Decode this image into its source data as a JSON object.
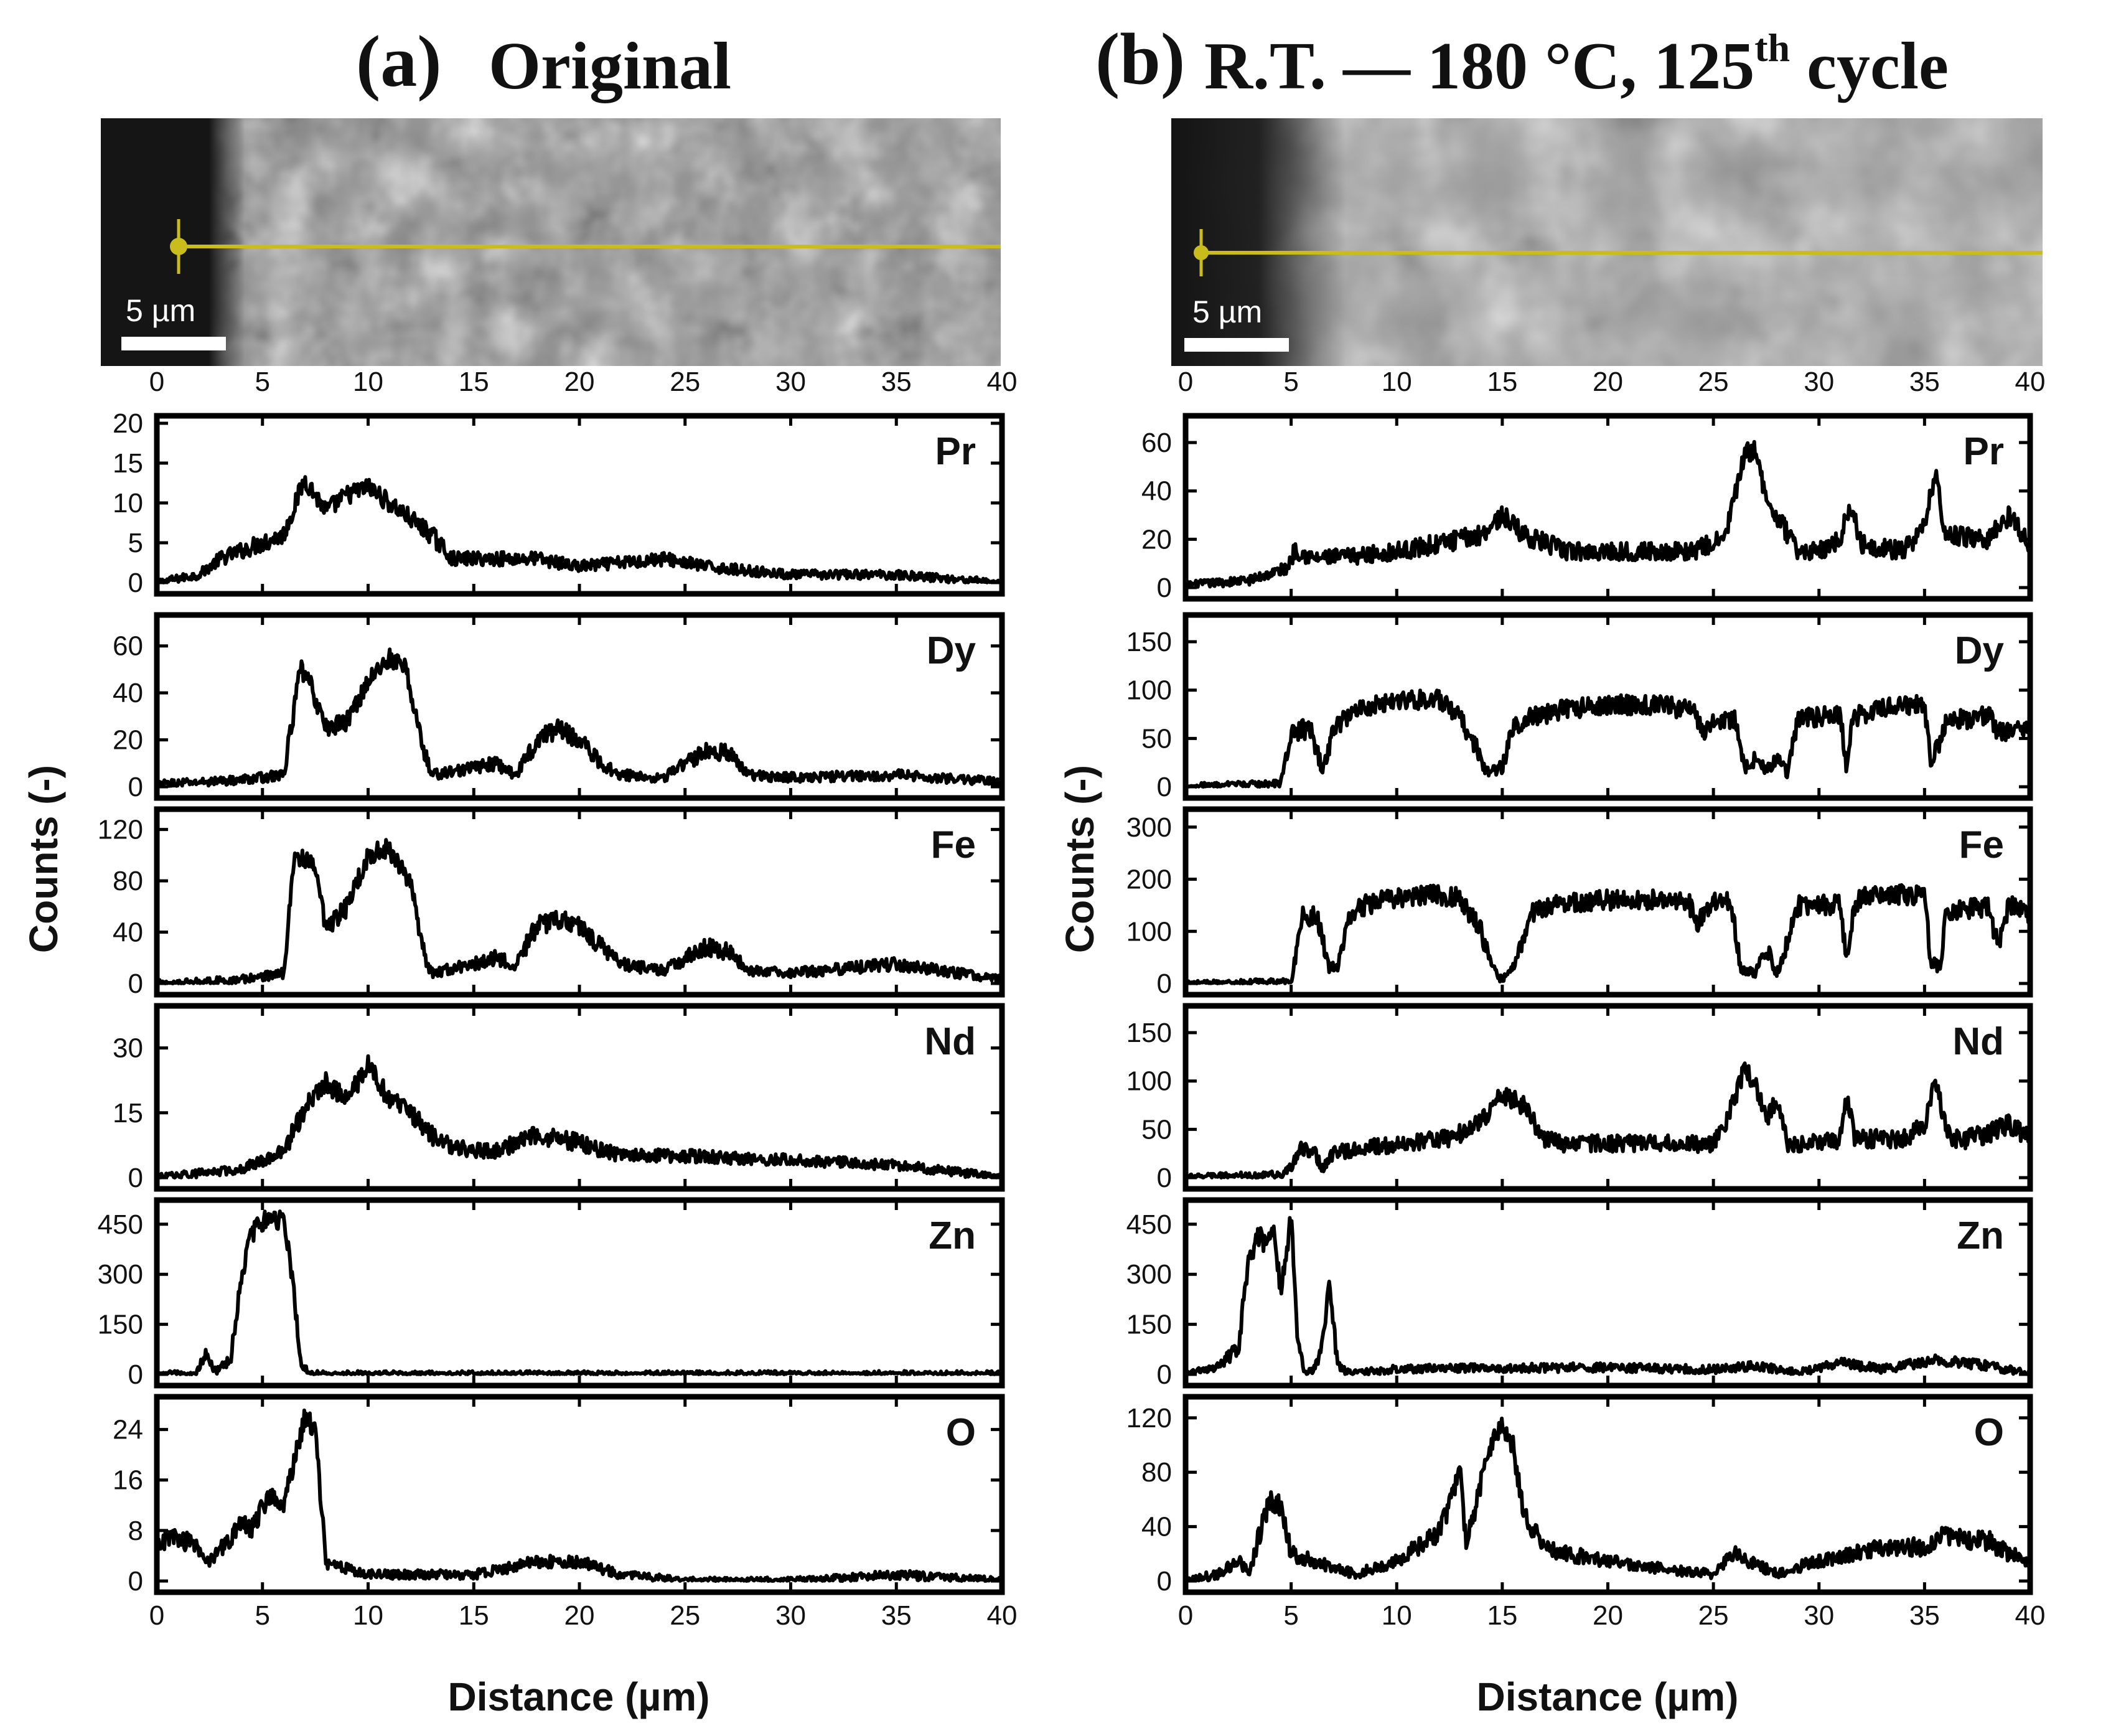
{
  "header_a": {
    "letter": "(a)",
    "title": "Original"
  },
  "header_b": {
    "letter": "(b)",
    "title_pre": "R.T. — 180 °C, 125",
    "title_sup": "th",
    "title_post": " cycle"
  },
  "micrograph_a": {
    "scalebar_label": "5 µm",
    "line_color": "#c9bc1c"
  },
  "micrograph_b": {
    "scalebar_label": "5 µm",
    "line_color": "#c9bc1c"
  },
  "x_axis": {
    "label": "Distance (µm)",
    "ticks": [
      0,
      5,
      10,
      15,
      20,
      25,
      30,
      35,
      40
    ],
    "xlim": [
      0,
      40
    ]
  },
  "y_axis_label": "Counts (-)",
  "chart_data": [
    {
      "type": "line",
      "panel": "a",
      "xlim": [
        0,
        40
      ],
      "xlabel": "Distance (µm)",
      "ylabel": "Counts (-)",
      "subplots": [
        {
          "element": "Pr",
          "ylim": [
            0,
            20
          ],
          "yticks": [
            0,
            5,
            10,
            15,
            20
          ],
          "x": [
            0,
            2,
            3,
            4,
            5,
            6,
            7,
            8,
            9,
            10,
            11,
            12,
            13,
            14,
            16,
            18,
            20,
            24,
            26,
            30,
            35,
            40
          ],
          "y": [
            0,
            1,
            3,
            4,
            5,
            6,
            13,
            9,
            11,
            12,
            10,
            8,
            6,
            3,
            3,
            3,
            2,
            3,
            2,
            1,
            1,
            0
          ]
        },
        {
          "element": "Dy",
          "ylim": [
            0,
            70
          ],
          "yticks": [
            0,
            20,
            40,
            60
          ],
          "x": [
            0,
            4,
            6,
            6.8,
            7.2,
            8,
            9,
            10,
            11,
            11.8,
            12.5,
            13,
            15,
            16,
            17,
            18,
            19,
            20,
            21,
            22,
            24,
            25,
            26,
            27,
            28,
            30,
            35,
            40
          ],
          "y": [
            1,
            3,
            5,
            50,
            45,
            25,
            28,
            45,
            55,
            50,
            20,
            5,
            8,
            10,
            5,
            20,
            25,
            20,
            10,
            5,
            4,
            10,
            15,
            15,
            5,
            4,
            5,
            2
          ]
        },
        {
          "element": "Fe",
          "ylim": [
            0,
            130
          ],
          "yticks": [
            0,
            40,
            80,
            120
          ],
          "x": [
            0,
            4,
            6,
            6.5,
            7.5,
            8,
            9,
            10,
            11,
            12,
            12.5,
            13,
            15,
            16,
            17,
            18,
            19,
            20,
            21,
            22,
            24,
            25,
            26,
            27,
            28,
            30,
            35,
            40
          ],
          "y": [
            0,
            3,
            8,
            100,
            90,
            40,
            60,
            100,
            105,
            80,
            30,
            8,
            15,
            20,
            15,
            45,
            50,
            45,
            30,
            15,
            10,
            20,
            28,
            25,
            10,
            8,
            15,
            3
          ]
        },
        {
          "element": "Nd",
          "ylim": [
            0,
            38
          ],
          "yticks": [
            0,
            15,
            30
          ],
          "x": [
            0,
            4,
            6,
            7,
            8,
            9,
            10,
            11,
            12,
            13,
            14,
            16,
            18,
            20,
            22,
            25,
            30,
            35,
            40
          ],
          "y": [
            0,
            2,
            6,
            16,
            22,
            18,
            26,
            18,
            15,
            10,
            7,
            6,
            10,
            8,
            5,
            5,
            4,
            3,
            0
          ]
        },
        {
          "element": "Zn",
          "ylim": [
            0,
            500
          ],
          "yticks": [
            0,
            150,
            300,
            450
          ],
          "x": [
            0,
            1.8,
            2.3,
            2.8,
            3.5,
            4,
            4.5,
            5,
            5.5,
            6,
            6.4,
            6.8,
            7.2,
            8,
            40
          ],
          "y": [
            0,
            0,
            60,
            5,
            50,
            300,
            420,
            460,
            470,
            460,
            300,
            40,
            0,
            0,
            0
          ]
        },
        {
          "element": "O",
          "ylim": [
            0,
            28
          ],
          "yticks": [
            0,
            8,
            16,
            24
          ],
          "x": [
            0,
            1,
            2,
            2.5,
            3,
            4,
            4.5,
            5,
            5.5,
            6,
            6.5,
            7,
            7.5,
            8,
            9,
            10,
            15,
            18,
            20,
            22,
            25,
            30,
            35,
            40
          ],
          "y": [
            6,
            7,
            5,
            3,
            5,
            9,
            8,
            12,
            14,
            12,
            19,
            26,
            24,
            3,
            2,
            1,
            1,
            3,
            3,
            1,
            0,
            0,
            1,
            0
          ]
        }
      ]
    },
    {
      "type": "line",
      "panel": "b",
      "xlim": [
        0,
        40
      ],
      "xlabel": "Distance (µm)",
      "ylabel": "Counts (-)",
      "subplots": [
        {
          "element": "Pr",
          "ylim": [
            0,
            68
          ],
          "yticks": [
            0,
            20,
            40,
            60
          ],
          "x": [
            0,
            3,
            4.8,
            5.2,
            6,
            8,
            10,
            12,
            14,
            15,
            16,
            18,
            20,
            22,
            24,
            25.5,
            26.5,
            27,
            27.5,
            28,
            29,
            30,
            31,
            31.5,
            32,
            34,
            35,
            35.5,
            36,
            38,
            39,
            40
          ],
          "y": [
            1,
            3,
            8,
            16,
            12,
            13,
            15,
            18,
            22,
            30,
            22,
            15,
            15,
            15,
            15,
            20,
            55,
            58,
            35,
            30,
            15,
            15,
            20,
            35,
            18,
            15,
            25,
            48,
            22,
            20,
            30,
            18
          ]
        },
        {
          "element": "Dy",
          "ylim": [
            0,
            170
          ],
          "yticks": [
            0,
            50,
            100,
            150
          ],
          "x": [
            0,
            4.5,
            5,
            5.5,
            6,
            6.5,
            7,
            7.5,
            8,
            10,
            12,
            13,
            13.8,
            14.2,
            15,
            15.5,
            16,
            18,
            20,
            22,
            24,
            24.5,
            25,
            25.5,
            26,
            26.5,
            27,
            27.5,
            28,
            28.5,
            29,
            31,
            31.3,
            31.6,
            32,
            34,
            35,
            35.3,
            35.8,
            36,
            37,
            38,
            38.5,
            40
          ],
          "y": [
            0,
            3,
            55,
            60,
            55,
            15,
            60,
            70,
            80,
            90,
            90,
            70,
            40,
            15,
            20,
            60,
            70,
            80,
            85,
            85,
            80,
            55,
            70,
            70,
            70,
            20,
            30,
            15,
            30,
            15,
            70,
            75,
            20,
            70,
            75,
            85,
            85,
            25,
            50,
            70,
            70,
            75,
            55,
            65
          ]
        },
        {
          "element": "Fe",
          "ylim": [
            0,
            320
          ],
          "yticks": [
            0,
            100,
            200,
            300
          ],
          "x": [
            0,
            5,
            5.5,
            6.2,
            6.8,
            7.2,
            7.8,
            8.5,
            10,
            12,
            13,
            14,
            14.5,
            15,
            15.5,
            16.5,
            18,
            20,
            22,
            23.8,
            24.2,
            25,
            25.8,
            26.3,
            27,
            27.5,
            28,
            28.5,
            29,
            31,
            31.3,
            31.7,
            32,
            34,
            35,
            35.3,
            35.8,
            36,
            38,
            38.5,
            39,
            40
          ],
          "y": [
            0,
            2,
            130,
            130,
            30,
            30,
            130,
            150,
            165,
            170,
            165,
            100,
            30,
            5,
            30,
            140,
            155,
            160,
            160,
            160,
            110,
            160,
            160,
            30,
            20,
            70,
            20,
            80,
            150,
            150,
            50,
            150,
            165,
            170,
            170,
            40,
            30,
            140,
            145,
            70,
            150,
            130
          ]
        },
        {
          "element": "Nd",
          "ylim": [
            0,
            170
          ],
          "yticks": [
            0,
            50,
            100,
            150
          ],
          "x": [
            0,
            4.5,
            5,
            5.5,
            6,
            6.5,
            7,
            8,
            10,
            12,
            13,
            14,
            15,
            16,
            17,
            18,
            20,
            22,
            24,
            25,
            25.6,
            26.5,
            27,
            27.5,
            28,
            28.5,
            29,
            31,
            31.3,
            31.7,
            32,
            34,
            35,
            35.5,
            36,
            36.3,
            37,
            38,
            39,
            40
          ],
          "y": [
            0,
            3,
            10,
            30,
            30,
            10,
            25,
            30,
            35,
            40,
            45,
            60,
            85,
            75,
            40,
            35,
            35,
            35,
            35,
            35,
            55,
            115,
            95,
            60,
            80,
            35,
            35,
            40,
            85,
            40,
            40,
            40,
            55,
            100,
            55,
            40,
            40,
            45,
            55,
            40
          ]
        },
        {
          "element": "Zn",
          "ylim": [
            0,
            500
          ],
          "yticks": [
            0,
            150,
            300,
            450
          ],
          "x": [
            0,
            1.5,
            2.5,
            3,
            3.5,
            3.8,
            4.2,
            4.5,
            5,
            5.3,
            5.6,
            6,
            6.4,
            6.8,
            7.2,
            7.6,
            8,
            10,
            15,
            20,
            25,
            27,
            29,
            31,
            33,
            35.5,
            38,
            40
          ],
          "y": [
            0,
            20,
            80,
            350,
            420,
            380,
            430,
            250,
            470,
            100,
            10,
            10,
            60,
            280,
            30,
            5,
            5,
            15,
            20,
            20,
            15,
            25,
            5,
            35,
            15,
            45,
            25,
            5
          ]
        },
        {
          "element": "O",
          "ylim": [
            0,
            130
          ],
          "yticks": [
            0,
            40,
            80,
            120
          ],
          "x": [
            0,
            1.5,
            2.5,
            3,
            3.5,
            4,
            4.5,
            5,
            6,
            8,
            10,
            11,
            12,
            12.5,
            13,
            13.3,
            13.8,
            14.3,
            15,
            15.5,
            16,
            17,
            18,
            20,
            22,
            25,
            26,
            28,
            30,
            33,
            35,
            36,
            37,
            38,
            39,
            40
          ],
          "y": [
            0,
            5,
            15,
            5,
            35,
            60,
            55,
            20,
            15,
            5,
            15,
            25,
            35,
            55,
            80,
            25,
            60,
            95,
            115,
            100,
            50,
            25,
            20,
            15,
            10,
            5,
            20,
            5,
            15,
            25,
            25,
            35,
            30,
            30,
            20,
            15
          ]
        }
      ]
    }
  ]
}
